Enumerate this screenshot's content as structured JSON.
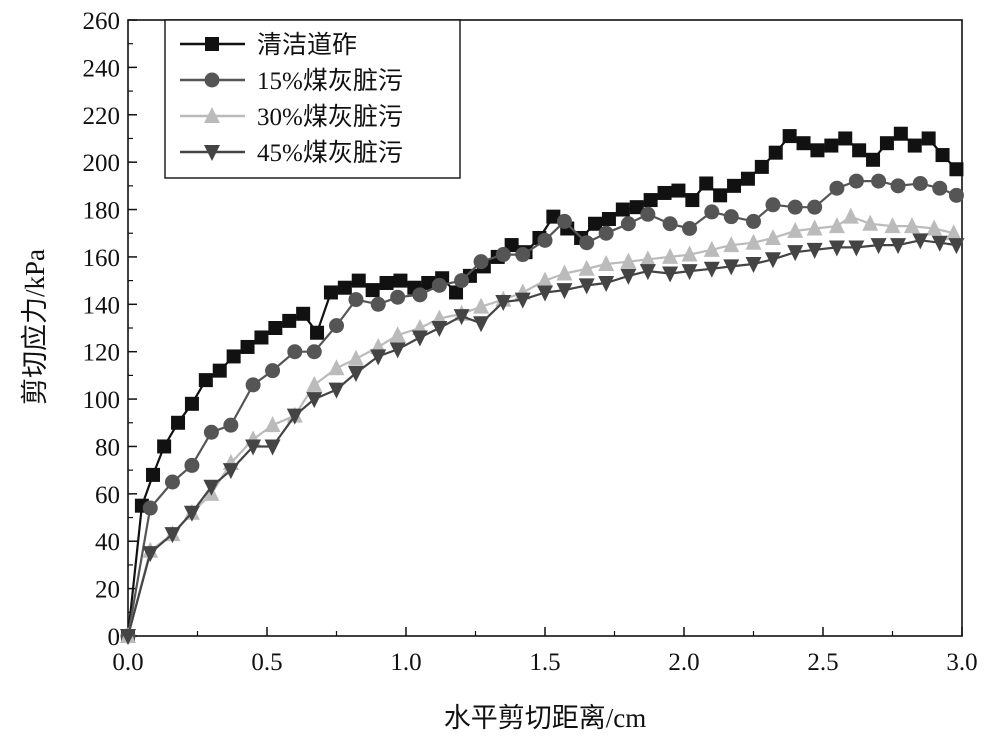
{
  "chart_data": {
    "type": "line",
    "xlabel": "水平剪切距离/cm",
    "ylabel": "剪切应力/kPa",
    "xlim": [
      0.0,
      3.0
    ],
    "ylim": [
      0,
      260
    ],
    "x_ticks": [
      "0.0",
      "0.5",
      "1.0",
      "1.5",
      "2.0",
      "2.5",
      "3.0"
    ],
    "y_ticks": [
      "0",
      "20",
      "40",
      "60",
      "80",
      "100",
      "120",
      "140",
      "160",
      "180",
      "200",
      "220",
      "240",
      "260"
    ],
    "legend_position": "top-left",
    "grid": false,
    "series": [
      {
        "name": "清洁道砟",
        "color": "#111111",
        "marker": "square",
        "x": [
          0,
          0.05,
          0.09,
          0.13,
          0.18,
          0.23,
          0.28,
          0.33,
          0.38,
          0.43,
          0.48,
          0.53,
          0.58,
          0.63,
          0.68,
          0.73,
          0.78,
          0.83,
          0.88,
          0.93,
          0.98,
          1.03,
          1.08,
          1.13,
          1.18,
          1.23,
          1.28,
          1.33,
          1.38,
          1.43,
          1.48,
          1.53,
          1.58,
          1.63,
          1.68,
          1.73,
          1.78,
          1.83,
          1.88,
          1.93,
          1.98,
          2.03,
          2.08,
          2.13,
          2.18,
          2.23,
          2.28,
          2.33,
          2.38,
          2.43,
          2.48,
          2.53,
          2.58,
          2.63,
          2.68,
          2.73,
          2.78,
          2.83,
          2.88,
          2.93,
          2.98
        ],
        "y": [
          0,
          55,
          68,
          80,
          90,
          98,
          108,
          112,
          118,
          122,
          126,
          130,
          133,
          136,
          128,
          145,
          147,
          150,
          146,
          149,
          150,
          147,
          149,
          151,
          145,
          152,
          156,
          160,
          165,
          162,
          168,
          177,
          172,
          168,
          174,
          176,
          180,
          181,
          184,
          187,
          188,
          184,
          191,
          186,
          190,
          193,
          198,
          204,
          211,
          208,
          205,
          207,
          210,
          205,
          201,
          208,
          212,
          207,
          210,
          203,
          197
        ]
      },
      {
        "name": "15%煤灰脏污",
        "color": "#555555",
        "marker": "circle",
        "x": [
          0,
          0.08,
          0.16,
          0.23,
          0.3,
          0.37,
          0.45,
          0.52,
          0.6,
          0.67,
          0.75,
          0.82,
          0.9,
          0.97,
          1.05,
          1.12,
          1.2,
          1.27,
          1.35,
          1.42,
          1.5,
          1.57,
          1.65,
          1.72,
          1.8,
          1.87,
          1.95,
          2.02,
          2.1,
          2.17,
          2.25,
          2.32,
          2.4,
          2.47,
          2.55,
          2.62,
          2.7,
          2.77,
          2.85,
          2.92,
          2.98
        ],
        "y": [
          0,
          54,
          65,
          72,
          86,
          89,
          106,
          112,
          120,
          120,
          131,
          142,
          140,
          143,
          144,
          148,
          150,
          158,
          161,
          161,
          167,
          175,
          166,
          170,
          174,
          178,
          174,
          172,
          179,
          177,
          175,
          182,
          181,
          181,
          189,
          192,
          192,
          190,
          191,
          189,
          186
        ]
      },
      {
        "name": "30%煤灰脏污",
        "color": "#bbbbbb",
        "marker": "triangle-up",
        "x": [
          0,
          0.08,
          0.16,
          0.23,
          0.3,
          0.37,
          0.45,
          0.52,
          0.6,
          0.67,
          0.75,
          0.82,
          0.9,
          0.97,
          1.05,
          1.12,
          1.2,
          1.27,
          1.35,
          1.42,
          1.5,
          1.57,
          1.65,
          1.72,
          1.8,
          1.87,
          1.95,
          2.02,
          2.1,
          2.17,
          2.25,
          2.32,
          2.4,
          2.47,
          2.55,
          2.6,
          2.67,
          2.75,
          2.82,
          2.9,
          2.97
        ],
        "y": [
          0,
          36,
          43,
          52,
          60,
          73,
          83,
          89,
          93,
          106,
          113,
          117,
          122,
          127,
          130,
          134,
          136,
          139,
          142,
          145,
          150,
          153,
          155,
          157,
          158,
          159,
          160,
          161,
          163,
          165,
          166,
          168,
          171,
          172,
          173,
          177,
          174,
          173,
          173,
          172,
          170
        ]
      },
      {
        "name": "45%煤灰脏污",
        "color": "#444444",
        "marker": "triangle-down",
        "x": [
          0,
          0.08,
          0.16,
          0.23,
          0.3,
          0.37,
          0.45,
          0.52,
          0.6,
          0.67,
          0.75,
          0.82,
          0.9,
          0.97,
          1.05,
          1.12,
          1.2,
          1.27,
          1.35,
          1.42,
          1.5,
          1.57,
          1.65,
          1.72,
          1.8,
          1.87,
          1.95,
          2.02,
          2.1,
          2.17,
          2.25,
          2.32,
          2.4,
          2.47,
          2.55,
          2.62,
          2.7,
          2.77,
          2.85,
          2.92,
          2.98
        ],
        "y": [
          0,
          35,
          43,
          52,
          63,
          70,
          80,
          80,
          93,
          100,
          104,
          111,
          118,
          121,
          126,
          130,
          135,
          132,
          141,
          142,
          145,
          146,
          148,
          149,
          152,
          154,
          153,
          154,
          155,
          156,
          157,
          159,
          162,
          163,
          164,
          164,
          165,
          165,
          167,
          166,
          165
        ]
      }
    ]
  }
}
